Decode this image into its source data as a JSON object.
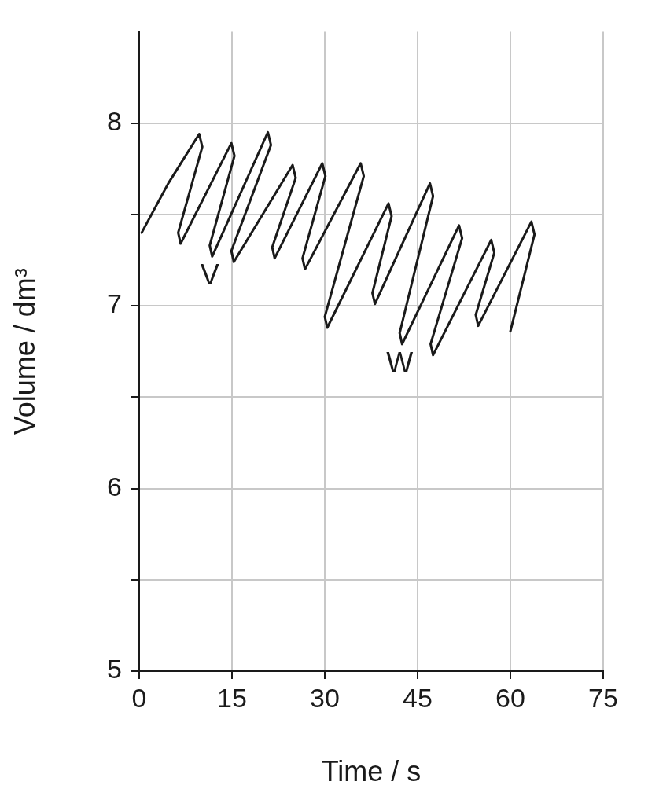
{
  "chart_data": {
    "type": "line",
    "xlabel": "Time / s",
    "ylabel": "Volume / dm³",
    "xlim": [
      0,
      75
    ],
    "xticks": [
      0,
      15,
      30,
      45,
      60,
      75
    ],
    "ylim": [
      5,
      8.5
    ],
    "yticks": [
      5,
      {
        "value": 5.5,
        "label": null
      },
      6,
      {
        "value": 6.5,
        "label": null
      },
      7,
      {
        "value": 7.5,
        "label": null
      },
      8
    ],
    "grid": true,
    "legend": false,
    "marker": "none",
    "line_style": "solid",
    "series": [
      {
        "color": "#1a1a1a",
        "x": [
          0.4,
          4.7,
          9.7,
          10.2,
          6.3,
          6.7,
          14.9,
          15.4,
          11.4,
          11.8,
          20.8,
          21.3,
          14.9,
          15.3,
          24.8,
          25.3,
          21.5,
          21.9,
          29.6,
          30.1,
          26.4,
          26.8,
          35.8,
          36.3,
          30.0,
          30.4,
          40.3,
          40.8,
          37.7,
          38.1,
          47.0,
          47.5,
          42.1,
          42.5,
          51.7,
          52.2,
          47.1,
          47.5,
          56.9,
          57.4,
          54.4,
          54.8,
          63.4,
          63.9,
          60.0
        ],
        "values": [
          7.4,
          7.67,
          7.94,
          7.87,
          7.4,
          7.34,
          7.89,
          7.82,
          7.33,
          7.27,
          7.95,
          7.88,
          7.3,
          7.24,
          7.77,
          7.7,
          7.32,
          7.26,
          7.78,
          7.71,
          7.26,
          7.2,
          7.78,
          7.71,
          6.94,
          6.88,
          7.56,
          7.49,
          7.07,
          7.01,
          7.67,
          7.6,
          6.85,
          6.79,
          7.44,
          7.37,
          6.79,
          6.73,
          7.36,
          7.29,
          6.95,
          6.89,
          7.46,
          7.39,
          6.86
        ]
      }
    ],
    "annotations": [
      {
        "text": "V",
        "x": 11.8,
        "y": 7.27
      },
      {
        "text": "W",
        "x": 42.5,
        "y": 6.79
      }
    ]
  }
}
